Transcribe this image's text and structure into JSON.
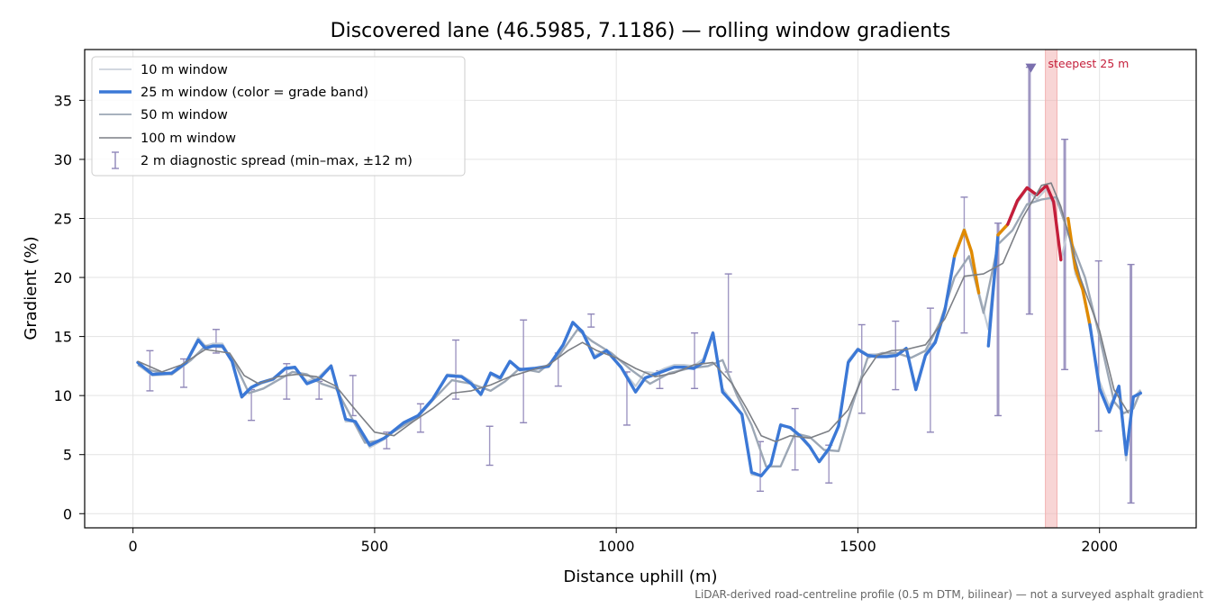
{
  "chart_data": {
    "type": "line",
    "title": "Discovered lane (46.5985, 7.1186) — rolling window gradients",
    "xlabel": "Distance uphill (m)",
    "ylabel": "Gradient (%)",
    "xlim": [
      -100,
      2200
    ],
    "ylim": [
      -1.2,
      39.3
    ],
    "xticks": [
      0,
      500,
      1000,
      1500,
      2000
    ],
    "yticks": [
      0,
      5,
      10,
      15,
      20,
      25,
      30,
      35
    ],
    "grid": true,
    "legend_position": "top-left",
    "footnote": "LiDAR-derived road-centreline profile (0.5 m DTM, bilinear) — not a surveyed asphalt gradient",
    "annotation": {
      "label": "steepest 25 m",
      "x_start": 1888,
      "x_end": 1912,
      "marker_x": 1858,
      "marker_y": 37.8,
      "color": "#c41e3a"
    },
    "colors": {
      "w10": "#c3ccd6",
      "w25_blue": "#3b78d6",
      "w25_orange": "#e08a00",
      "w25_red": "#c41e3a",
      "w50": "#9ca7b5",
      "w100": "#7c7f85",
      "spread": "#8f86b8",
      "band": "#f2b3b3"
    },
    "series": [
      {
        "name": "10 m window",
        "x": [
          10,
          40,
          80,
          110,
          135,
          150,
          165,
          185,
          205,
          225,
          245,
          265,
          290,
          315,
          335,
          360,
          385,
          410,
          440,
          460,
          490,
          520,
          560,
          590,
          620,
          650,
          680,
          700,
          720,
          740,
          760,
          780,
          800,
          830,
          860,
          890,
          910,
          930,
          955,
          980,
          1010,
          1040,
          1060,
          1080,
          1100,
          1120,
          1140,
          1160,
          1180,
          1200,
          1220,
          1240,
          1260,
          1280,
          1300,
          1320,
          1340,
          1360,
          1380,
          1400,
          1420,
          1440,
          1460,
          1480,
          1500,
          1520,
          1540,
          1560,
          1580,
          1600,
          1620,
          1640,
          1660,
          1680,
          1700,
          1720,
          1735,
          1750,
          1770,
          1790,
          1810,
          1830,
          1850,
          1870,
          1890,
          1905,
          1920,
          1935,
          1950,
          1965,
          1980,
          2000,
          2020,
          2040,
          2055,
          2070,
          2085
        ],
        "y": [
          12.6,
          11.7,
          11.8,
          12.9,
          14.9,
          14.2,
          14.4,
          14.4,
          13.0,
          9.8,
          10.6,
          11.0,
          11.3,
          12.2,
          12.3,
          11.2,
          11.6,
          12.6,
          7.8,
          7.8,
          5.6,
          6.3,
          7.6,
          8.2,
          9.6,
          11.8,
          11.7,
          11.2,
          10.0,
          11.8,
          11.3,
          12.9,
          12.1,
          12.2,
          12.4,
          14.2,
          16.1,
          15.5,
          13.4,
          13.9,
          12.3,
          10.8,
          12.0,
          11.9,
          12.3,
          12.6,
          12.6,
          12.5,
          13.1,
          15.4,
          10.6,
          9.5,
          8.3,
          3.3,
          3.2,
          4.1,
          7.6,
          7.2,
          6.5,
          5.6,
          4.5,
          5.3,
          7.6,
          13.0,
          14.0,
          13.5,
          13.5,
          13.4,
          13.5,
          14.0,
          10.8,
          13.6,
          14.7,
          17.5,
          22.0,
          24.2,
          22.0,
          18.8,
          15.6,
          23.6,
          24.4,
          26.3,
          27.5,
          26.6,
          27.5,
          26.1,
          21.4,
          24.2,
          20.3,
          18.9,
          15.6,
          11.2,
          9.1,
          10.6,
          4.5,
          9.8,
          10.5
        ]
      },
      {
        "name": "25 m window (color = grade band)",
        "x": [
          10,
          40,
          80,
          110,
          135,
          150,
          165,
          185,
          205,
          225,
          245,
          265,
          290,
          315,
          335,
          360,
          385,
          410,
          440,
          460,
          490,
          520,
          560,
          590,
          620,
          650,
          680,
          700,
          720,
          740,
          760,
          780,
          800,
          830,
          860,
          890,
          910,
          930,
          955,
          980,
          1010,
          1040,
          1060,
          1080,
          1100,
          1120,
          1140,
          1160,
          1180,
          1200,
          1220,
          1240,
          1260,
          1280,
          1300,
          1320,
          1340,
          1360,
          1380,
          1400,
          1420,
          1440,
          1460,
          1480,
          1500,
          1520,
          1540,
          1560,
          1580,
          1600,
          1620,
          1640,
          1660,
          1680,
          1700,
          1720,
          1735,
          1750,
          1770,
          1790,
          1810,
          1830,
          1850,
          1870,
          1890,
          1905,
          1920,
          1935,
          1950,
          1965,
          1980,
          2000,
          2020,
          2040,
          2055,
          2070,
          2085
        ],
        "y": [
          12.8,
          11.8,
          11.9,
          12.8,
          14.7,
          14.0,
          14.2,
          14.2,
          12.9,
          9.9,
          10.7,
          11.1,
          11.4,
          12.3,
          12.4,
          11.0,
          11.4,
          12.5,
          8.0,
          7.8,
          5.8,
          6.4,
          7.7,
          8.3,
          9.7,
          11.7,
          11.6,
          11.0,
          10.1,
          11.9,
          11.5,
          12.9,
          12.2,
          12.3,
          12.5,
          14.3,
          16.2,
          15.4,
          13.2,
          13.8,
          12.4,
          10.3,
          11.5,
          11.8,
          12.1,
          12.4,
          12.4,
          12.3,
          12.8,
          15.3,
          10.3,
          9.4,
          8.4,
          3.5,
          3.2,
          4.2,
          7.5,
          7.3,
          6.6,
          5.7,
          4.4,
          5.5,
          7.4,
          12.8,
          13.9,
          13.4,
          13.3,
          13.3,
          13.4,
          14.0,
          10.5,
          13.4,
          14.5,
          17.2,
          21.8,
          24.0,
          22.2,
          18.7,
          14.2,
          23.6,
          24.5,
          26.5,
          27.6,
          27.0,
          27.8,
          26.4,
          21.5,
          25.0,
          20.8,
          19.0,
          16.0,
          10.6,
          8.6,
          10.8,
          5.0,
          9.9,
          10.2
        ],
        "bands": [
          {
            "color_role": "blue",
            "x_from": 10,
            "x_to": 1700
          },
          {
            "color_role": "orange",
            "x_from": 1700,
            "x_to": 1760
          },
          {
            "color_role": "blue",
            "x_from": 1760,
            "x_to": 1790
          },
          {
            "color_role": "orange",
            "x_from": 1790,
            "x_to": 1810
          },
          {
            "color_role": "red",
            "x_from": 1810,
            "x_to": 1930
          },
          {
            "color_role": "orange",
            "x_from": 1930,
            "x_to": 1980
          },
          {
            "color_role": "blue",
            "x_from": 1980,
            "x_to": 2085
          }
        ]
      },
      {
        "name": "50 m window",
        "x": [
          10,
          40,
          80,
          120,
          150,
          185,
          210,
          240,
          270,
          300,
          330,
          360,
          390,
          420,
          450,
          480,
          510,
          550,
          590,
          620,
          660,
          700,
          740,
          770,
          800,
          840,
          880,
          920,
          950,
          990,
          1030,
          1070,
          1110,
          1150,
          1190,
          1220,
          1250,
          1280,
          1310,
          1340,
          1370,
          1400,
          1430,
          1460,
          1490,
          1520,
          1550,
          1580,
          1610,
          1640,
          1670,
          1700,
          1730,
          1760,
          1790,
          1820,
          1850,
          1880,
          1910,
          1940,
          1970,
          2000,
          2030,
          2050,
          2070,
          2085
        ],
        "y": [
          12.6,
          12.1,
          11.8,
          13.0,
          14.2,
          14.1,
          12.8,
          10.2,
          10.6,
          11.3,
          12.0,
          11.8,
          11.0,
          10.6,
          8.3,
          6.0,
          6.2,
          7.2,
          8.2,
          9.6,
          11.3,
          11.0,
          10.4,
          11.2,
          12.3,
          12.0,
          13.3,
          15.6,
          14.6,
          13.6,
          12.2,
          11.0,
          11.9,
          12.3,
          12.5,
          13.0,
          10.0,
          7.5,
          4.0,
          4.0,
          6.8,
          6.5,
          5.4,
          5.3,
          9.4,
          13.2,
          13.6,
          13.6,
          13.2,
          13.8,
          16.2,
          20.0,
          21.8,
          17.0,
          22.8,
          24.0,
          26.2,
          26.6,
          26.8,
          23.2,
          20.0,
          15.0,
          9.5,
          8.5,
          8.9,
          10.4
        ]
      },
      {
        "name": "100 m window",
        "x": [
          10,
          60,
          100,
          150,
          200,
          230,
          260,
          300,
          340,
          380,
          420,
          460,
          500,
          540,
          580,
          620,
          660,
          700,
          740,
          780,
          820,
          860,
          900,
          930,
          960,
          1000,
          1040,
          1080,
          1120,
          1160,
          1200,
          1240,
          1270,
          1300,
          1330,
          1360,
          1400,
          1440,
          1480,
          1510,
          1540,
          1570,
          1600,
          1640,
          1680,
          1720,
          1760,
          1800,
          1840,
          1880,
          1900,
          1920,
          1960,
          2000,
          2030,
          2060
        ],
        "y": [
          12.9,
          12.0,
          12.6,
          13.9,
          13.6,
          11.7,
          11.0,
          11.6,
          11.8,
          11.6,
          10.8,
          8.8,
          6.9,
          6.6,
          7.8,
          8.9,
          10.2,
          10.4,
          10.9,
          11.6,
          12.1,
          12.6,
          13.8,
          14.5,
          13.8,
          13.2,
          12.3,
          11.6,
          11.9,
          12.6,
          12.8,
          11.0,
          8.9,
          6.6,
          6.1,
          6.6,
          6.4,
          7.0,
          8.8,
          11.6,
          13.4,
          13.8,
          13.9,
          14.3,
          16.5,
          20.1,
          20.3,
          21.2,
          25.0,
          27.8,
          28.0,
          26.0,
          20.0,
          15.5,
          10.5,
          8.5
        ]
      }
    ],
    "spread_bars": [
      {
        "x": 35,
        "lo": 10.4,
        "hi": 13.8
      },
      {
        "x": 105,
        "lo": 10.7,
        "hi": 13.1
      },
      {
        "x": 172,
        "lo": 13.6,
        "hi": 15.6
      },
      {
        "x": 245,
        "lo": 7.9,
        "hi": 10.5
      },
      {
        "x": 318,
        "lo": 9.7,
        "hi": 12.7
      },
      {
        "x": 385,
        "lo": 9.7,
        "hi": 11.2
      },
      {
        "x": 455,
        "lo": 8.3,
        "hi": 11.7
      },
      {
        "x": 525,
        "lo": 5.5,
        "hi": 6.9
      },
      {
        "x": 595,
        "lo": 6.9,
        "hi": 9.3
      },
      {
        "x": 668,
        "lo": 9.7,
        "hi": 14.7
      },
      {
        "x": 738,
        "lo": 4.1,
        "hi": 7.4
      },
      {
        "x": 808,
        "lo": 7.7,
        "hi": 16.4
      },
      {
        "x": 880,
        "lo": 10.8,
        "hi": 13.6
      },
      {
        "x": 948,
        "lo": 15.8,
        "hi": 16.9
      },
      {
        "x": 1022,
        "lo": 7.5,
        "hi": 12.0
      },
      {
        "x": 1090,
        "lo": 10.6,
        "hi": 12.1
      },
      {
        "x": 1162,
        "lo": 10.6,
        "hi": 15.3
      },
      {
        "x": 1232,
        "lo": 12.0,
        "hi": 20.3
      },
      {
        "x": 1298,
        "lo": 1.9,
        "hi": 6.1
      },
      {
        "x": 1370,
        "lo": 3.7,
        "hi": 8.9
      },
      {
        "x": 1440,
        "lo": 2.6,
        "hi": 5.8
      },
      {
        "x": 1508,
        "lo": 8.5,
        "hi": 16.0
      },
      {
        "x": 1578,
        "lo": 10.5,
        "hi": 16.3
      },
      {
        "x": 1650,
        "lo": 6.9,
        "hi": 17.4
      },
      {
        "x": 1720,
        "lo": 15.3,
        "hi": 26.8
      },
      {
        "x": 1790,
        "lo": 8.3,
        "hi": 24.6
      },
      {
        "x": 1855,
        "lo": 16.9,
        "hi": 37.8
      },
      {
        "x": 1928,
        "lo": 12.2,
        "hi": 31.7
      },
      {
        "x": 1998,
        "lo": 7.0,
        "hi": 21.4
      },
      {
        "x": 2065,
        "lo": 0.9,
        "hi": 21.1
      }
    ]
  }
}
